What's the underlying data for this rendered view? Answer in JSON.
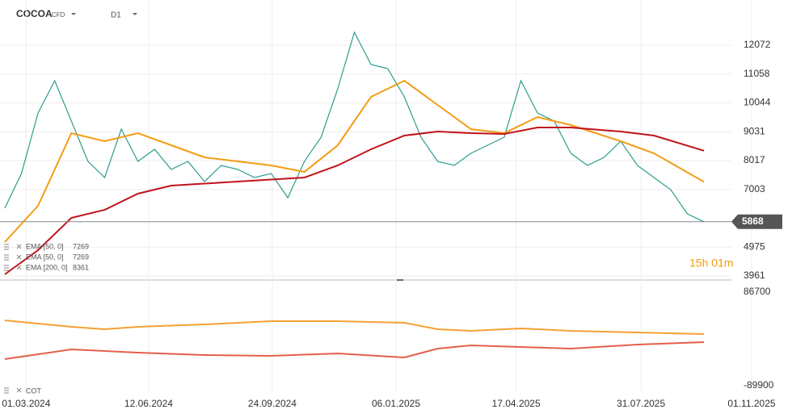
{
  "header": {
    "symbol": "COCOA",
    "badge": "CFD",
    "timeframe": "D1",
    "countdown": "15h 01m"
  },
  "chart_data": [
    {
      "type": "line",
      "xlim": [
        "2024-02-08",
        "2025-12-05"
      ],
      "xticks": [
        {
          "value": "2024-03-01",
          "label": "01.03.2024"
        },
        {
          "value": "2024-06-12",
          "label": "12.06.2024"
        },
        {
          "value": "2024-09-24",
          "label": "24.09.2024"
        },
        {
          "value": "2025-01-06",
          "label": "06.01.2025"
        },
        {
          "value": "2025-04-17",
          "label": "17.04.2025"
        },
        {
          "value": "2025-07-31",
          "label": "31.07.2025"
        },
        {
          "value": "2025-11-01",
          "label": "01.11.2025"
        }
      ],
      "ylim": [
        3819,
        13660
      ],
      "yticks": [
        3961,
        4975,
        7003,
        8017,
        9031,
        10044,
        11058,
        12072
      ],
      "grid": true,
      "last_price": 5868,
      "series": [
        {
          "color": "#2a9d8f",
          "x": [
            "2024-02-12",
            "2024-02-26",
            "2024-03-11",
            "2024-03-25",
            "2024-04-08",
            "2024-04-22",
            "2024-05-06",
            "2024-05-20",
            "2024-06-03",
            "2024-06-17",
            "2024-07-01",
            "2024-07-15",
            "2024-07-29",
            "2024-08-12",
            "2024-08-26",
            "2024-09-09",
            "2024-09-23",
            "2024-10-07",
            "2024-10-21",
            "2024-11-04",
            "2024-11-18",
            "2024-12-02",
            "2024-12-16",
            "2024-12-30",
            "2025-01-13",
            "2025-01-27",
            "2025-02-10",
            "2025-02-24",
            "2025-03-10",
            "2025-03-24",
            "2025-04-07",
            "2025-04-21",
            "2025-05-05",
            "2025-05-19",
            "2025-06-02",
            "2025-06-16",
            "2025-06-30",
            "2025-07-14",
            "2025-07-28",
            "2025-08-11",
            "2025-08-25",
            "2025-09-08",
            "2025-09-22"
          ],
          "values": [
            6343,
            7563,
            9690,
            10824,
            9406,
            7988,
            7421,
            9122,
            7988,
            8413,
            7704,
            7988,
            7279,
            7846,
            7704,
            7421,
            7563,
            6712,
            7988,
            8839,
            10540,
            12526,
            11391,
            11249,
            10257,
            8839,
            7988,
            7846,
            8271,
            8555,
            8839,
            10824,
            9690,
            9406,
            8271,
            7846,
            8129,
            8697,
            7846,
            7421,
            6995,
            6145,
            5868
          ]
        },
        {
          "name": "EMA [50, 0]",
          "color": "#f39c12",
          "x": [
            "2024-02-12",
            "2024-03-11",
            "2024-04-08",
            "2024-05-06",
            "2024-06-03",
            "2024-07-01",
            "2024-07-29",
            "2024-08-26",
            "2024-09-23",
            "2024-10-21",
            "2024-11-18",
            "2024-12-16",
            "2025-01-13",
            "2025-02-10",
            "2025-03-10",
            "2025-04-07",
            "2025-05-05",
            "2025-06-02",
            "2025-07-14",
            "2025-08-11",
            "2025-09-22"
          ],
          "values": [
            5152,
            6428,
            8981,
            8697,
            8981,
            8555,
            8129,
            7988,
            7846,
            7619,
            8555,
            10257,
            10824,
            9973,
            9122,
            8981,
            9548,
            9264,
            8697,
            8271,
            7269
          ]
        },
        {
          "name": "EMA [200, 0]",
          "color": "#c0131b",
          "x": [
            "2024-02-12",
            "2024-03-11",
            "2024-04-08",
            "2024-05-06",
            "2024-06-03",
            "2024-07-01",
            "2024-08-26",
            "2024-10-21",
            "2024-11-18",
            "2024-12-16",
            "2025-01-13",
            "2025-02-10",
            "2025-03-10",
            "2025-04-07",
            "2025-05-05",
            "2025-06-02",
            "2025-07-14",
            "2025-08-11",
            "2025-09-22"
          ],
          "values": [
            4018,
            4868,
            6003,
            6286,
            6854,
            7137,
            7279,
            7421,
            7846,
            8413,
            8896,
            9037,
            8981,
            8953,
            9179,
            9179,
            9037,
            8896,
            8361
          ]
        }
      ]
    },
    {
      "type": "line",
      "legend": "COT",
      "ylim": [
        -100554,
        104964
      ],
      "yticks": [
        86700,
        -89900
      ],
      "series": [
        {
          "color": "#f5a031",
          "x": [
            "2024-02-12",
            "2024-04-08",
            "2024-05-06",
            "2024-06-03",
            "2024-07-29",
            "2024-09-23",
            "2024-11-18",
            "2025-01-13",
            "2025-02-10",
            "2025-03-10",
            "2025-04-21",
            "2025-06-02",
            "2025-07-28",
            "2025-09-22"
          ],
          "values": [
            33430,
            21254,
            16688,
            21254,
            25820,
            31908,
            31908,
            28864,
            16688,
            13644,
            18210,
            13644,
            10600,
            7556
          ]
        },
        {
          "color": "#e5604a",
          "x": [
            "2024-02-12",
            "2024-04-08",
            "2024-06-03",
            "2024-07-29",
            "2024-09-23",
            "2024-11-18",
            "2025-01-13",
            "2025-02-10",
            "2025-03-10",
            "2025-04-21",
            "2025-06-02",
            "2025-07-28",
            "2025-09-22"
          ],
          "values": [
            -39626,
            -21362,
            -27450,
            -32016,
            -33538,
            -28972,
            -36584,
            -19840,
            -13752,
            -16796,
            -19840,
            -12230,
            -7666
          ]
        }
      ]
    }
  ]
}
